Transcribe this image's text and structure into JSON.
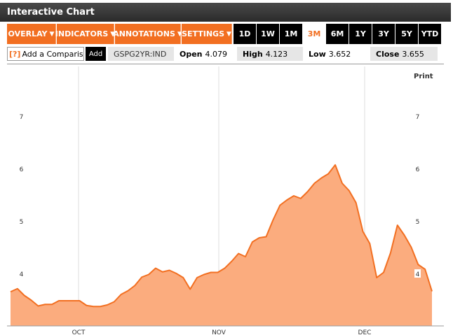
{
  "window": {
    "title": "Interactive Chart"
  },
  "menu": [
    {
      "label": "OVERLAY",
      "name": "overlay-menu"
    },
    {
      "label": "INDICATORS",
      "name": "indicators-menu"
    },
    {
      "label": "ANNOTATIONS",
      "name": "annotations-menu"
    },
    {
      "label": "SETTINGS",
      "name": "settings-menu"
    }
  ],
  "ranges": [
    "1D",
    "1W",
    "1M",
    "3M",
    "6M",
    "1Y",
    "3Y",
    "5Y",
    "YTD"
  ],
  "active_range": "3M",
  "compare": {
    "help": "[?]",
    "placeholder": "Add a Comparison",
    "button": "Add"
  },
  "ticker": "GSPG2YR:IND",
  "stats": {
    "open_label": "Open",
    "open": "4.079",
    "high_label": "High",
    "high": "4.123",
    "low_label": "Low",
    "low": "3.652",
    "close_label": "Close",
    "close": "3.655"
  },
  "print_label": "Print",
  "colors": {
    "accent": "#f26f21",
    "area_fill": "#fbac7e",
    "line": "#f26f21"
  },
  "chart_data": {
    "type": "area",
    "title": "",
    "xlabel": "",
    "ylabel": "",
    "ylim": [
      3.0,
      8.0
    ],
    "yticks": [
      4,
      5,
      6,
      7
    ],
    "xticks": [
      "OCT",
      "NOV",
      "DEC"
    ],
    "grid": true,
    "series": [
      {
        "values": [
          3.65,
          3.71,
          3.58,
          3.49,
          3.38,
          3.41,
          3.41,
          3.48,
          3.48,
          3.48,
          3.48,
          3.39,
          3.37,
          3.37,
          3.4,
          3.46,
          3.6,
          3.67,
          3.77,
          3.93,
          3.98,
          4.1,
          4.03,
          4.06,
          4.0,
          3.92,
          3.7,
          3.92,
          3.98,
          4.02,
          4.02,
          4.1,
          4.23,
          4.38,
          4.32,
          4.6,
          4.68,
          4.7,
          5.02,
          5.3,
          5.4,
          5.48,
          5.43,
          5.56,
          5.72,
          5.82,
          5.9,
          6.07,
          5.72,
          5.58,
          5.35,
          4.8,
          4.57,
          3.92,
          4.02,
          4.39,
          4.92,
          4.73,
          4.5,
          4.17,
          4.08,
          3.66
        ]
      }
    ]
  }
}
